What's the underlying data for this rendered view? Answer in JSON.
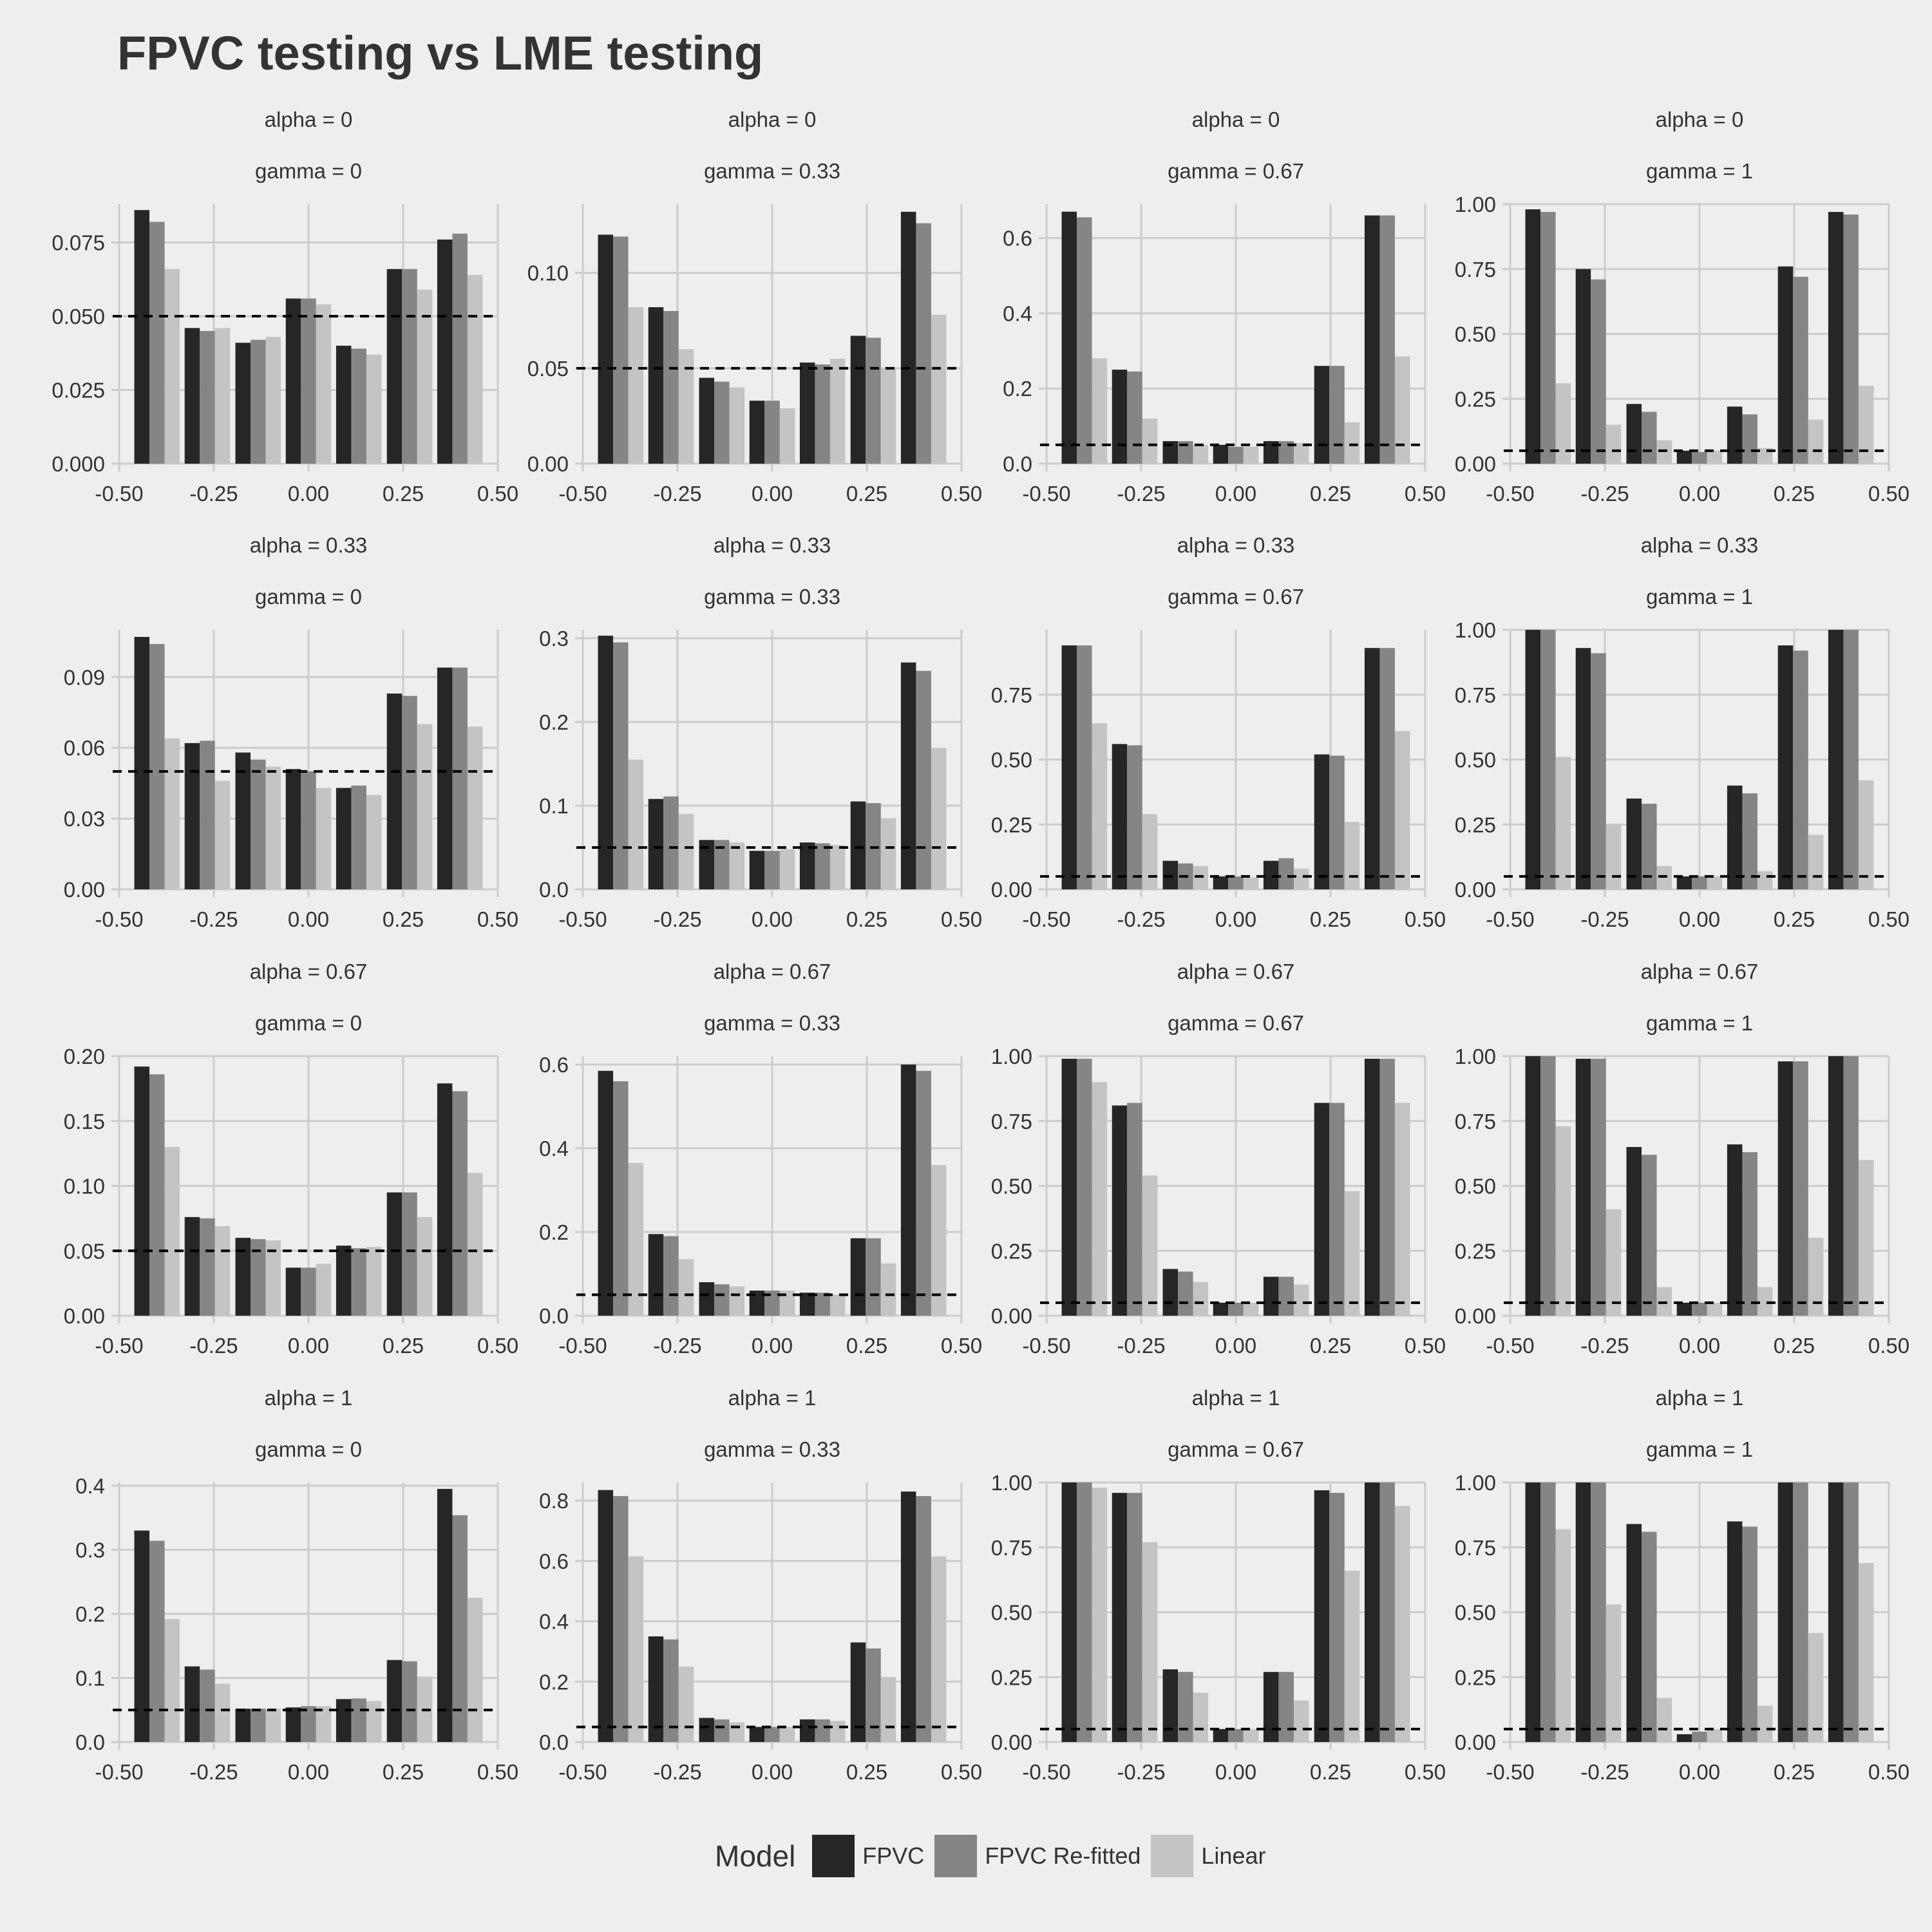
{
  "title": "FPVC testing vs LME testing",
  "legend": {
    "title": "Model",
    "items": [
      {
        "label": "FPVC",
        "color": "#262626"
      },
      {
        "label": "FPVC Re-fitted",
        "color": "#858585"
      },
      {
        "label": "Linear",
        "color": "#c4c4c4"
      }
    ]
  },
  "colors": {
    "background": "#eeeeee",
    "grid": "#cccccc",
    "text": "#333333",
    "reference_line": "#000000"
  },
  "chart_data": {
    "type": "bar",
    "layout": "facet-grid",
    "x": [
      -0.4,
      -0.267,
      -0.133,
      0.0,
      0.133,
      0.267,
      0.4
    ],
    "x_ticks": [
      "-0.50",
      "-0.25",
      "0.00",
      "0.25",
      "0.50"
    ],
    "xlim": [
      -0.5,
      0.5
    ],
    "reference_line": 0.05,
    "grid": true,
    "legend_position": "bottom",
    "series_names": [
      "FPVC",
      "FPVC Re-fitted",
      "Linear"
    ],
    "panels": [
      {
        "row_label": "alpha = 0",
        "col_label": "gamma = 0",
        "ylim": [
          0,
          0.088
        ],
        "y_ticks": [
          "0.000",
          "0.025",
          "0.050",
          "0.075"
        ],
        "values": [
          [
            0.086,
            0.046,
            0.041,
            0.056,
            0.04,
            0.066,
            0.076
          ],
          [
            0.082,
            0.045,
            0.042,
            0.056,
            0.039,
            0.066,
            0.078
          ],
          [
            0.066,
            0.046,
            0.043,
            0.054,
            0.037,
            0.059,
            0.064
          ]
        ]
      },
      {
        "row_label": "alpha = 0",
        "col_label": "gamma = 0.33",
        "ylim": [
          0,
          0.136
        ],
        "y_ticks": [
          "0.00",
          "0.05",
          "0.10"
        ],
        "values": [
          [
            0.12,
            0.082,
            0.045,
            0.033,
            0.053,
            0.067,
            0.132
          ],
          [
            0.119,
            0.08,
            0.043,
            0.033,
            0.052,
            0.066,
            0.126
          ],
          [
            0.082,
            0.06,
            0.04,
            0.029,
            0.055,
            0.05,
            0.078
          ]
        ]
      },
      {
        "row_label": "alpha = 0",
        "col_label": "gamma = 0.67",
        "ylim": [
          0,
          0.69
        ],
        "y_ticks": [
          "0.0",
          "0.2",
          "0.4",
          "0.6"
        ],
        "values": [
          [
            0.67,
            0.25,
            0.06,
            0.05,
            0.06,
            0.26,
            0.66
          ],
          [
            0.655,
            0.245,
            0.06,
            0.045,
            0.06,
            0.26,
            0.66
          ],
          [
            0.28,
            0.12,
            0.05,
            0.045,
            0.055,
            0.11,
            0.285
          ]
        ]
      },
      {
        "row_label": "alpha = 0",
        "col_label": "gamma = 1",
        "ylim": [
          0,
          1.0
        ],
        "y_ticks": [
          "0.00",
          "0.25",
          "0.50",
          "0.75",
          "1.00"
        ],
        "values": [
          [
            0.98,
            0.75,
            0.23,
            0.05,
            0.22,
            0.76,
            0.97
          ],
          [
            0.97,
            0.71,
            0.2,
            0.045,
            0.19,
            0.72,
            0.96
          ],
          [
            0.31,
            0.15,
            0.09,
            0.05,
            0.06,
            0.17,
            0.3
          ]
        ]
      },
      {
        "row_label": "alpha = 0.33",
        "col_label": "gamma = 0",
        "ylim": [
          0,
          0.11
        ],
        "y_ticks": [
          "0.00",
          "0.03",
          "0.06",
          "0.09"
        ],
        "values": [
          [
            0.107,
            0.062,
            0.058,
            0.051,
            0.043,
            0.083,
            0.094
          ],
          [
            0.104,
            0.063,
            0.055,
            0.05,
            0.044,
            0.082,
            0.094
          ],
          [
            0.064,
            0.046,
            0.052,
            0.043,
            0.04,
            0.07,
            0.069
          ]
        ]
      },
      {
        "row_label": "alpha = 0.33",
        "col_label": "gamma = 0.33",
        "ylim": [
          0,
          0.31
        ],
        "y_ticks": [
          "0.0",
          "0.1",
          "0.2",
          "0.3"
        ],
        "values": [
          [
            0.303,
            0.108,
            0.059,
            0.046,
            0.056,
            0.105,
            0.271
          ],
          [
            0.295,
            0.111,
            0.059,
            0.046,
            0.055,
            0.103,
            0.261
          ],
          [
            0.155,
            0.09,
            0.056,
            0.048,
            0.053,
            0.085,
            0.169
          ]
        ]
      },
      {
        "row_label": "alpha = 0.33",
        "col_label": "gamma = 0.67",
        "ylim": [
          0,
          1.0
        ],
        "y_ticks": [
          "0.00",
          "0.25",
          "0.50",
          "0.75"
        ],
        "values": [
          [
            0.94,
            0.56,
            0.11,
            0.05,
            0.11,
            0.52,
            0.93
          ],
          [
            0.94,
            0.555,
            0.1,
            0.05,
            0.12,
            0.515,
            0.93
          ],
          [
            0.64,
            0.29,
            0.09,
            0.045,
            0.08,
            0.26,
            0.61
          ]
        ]
      },
      {
        "row_label": "alpha = 0.33",
        "col_label": "gamma = 1",
        "ylim": [
          0,
          1.0
        ],
        "y_ticks": [
          "0.00",
          "0.25",
          "0.50",
          "0.75",
          "1.00"
        ],
        "values": [
          [
            1.0,
            0.93,
            0.35,
            0.05,
            0.4,
            0.94,
            1.0
          ],
          [
            1.0,
            0.91,
            0.33,
            0.05,
            0.37,
            0.92,
            1.0
          ],
          [
            0.51,
            0.25,
            0.09,
            0.05,
            0.07,
            0.21,
            0.42
          ]
        ]
      },
      {
        "row_label": "alpha = 0.67",
        "col_label": "gamma = 0",
        "ylim": [
          0,
          0.2
        ],
        "y_ticks": [
          "0.00",
          "0.05",
          "0.10",
          "0.15",
          "0.20"
        ],
        "values": [
          [
            0.192,
            0.076,
            0.06,
            0.037,
            0.054,
            0.095,
            0.179
          ],
          [
            0.186,
            0.075,
            0.059,
            0.037,
            0.052,
            0.095,
            0.173
          ],
          [
            0.13,
            0.069,
            0.058,
            0.04,
            0.053,
            0.076,
            0.11
          ]
        ]
      },
      {
        "row_label": "alpha = 0.67",
        "col_label": "gamma = 0.33",
        "ylim": [
          0,
          0.62
        ],
        "y_ticks": [
          "0.0",
          "0.2",
          "0.4",
          "0.6"
        ],
        "values": [
          [
            0.585,
            0.195,
            0.08,
            0.06,
            0.055,
            0.185,
            0.6
          ],
          [
            0.56,
            0.19,
            0.075,
            0.06,
            0.055,
            0.185,
            0.585
          ],
          [
            0.365,
            0.135,
            0.07,
            0.06,
            0.05,
            0.125,
            0.36
          ]
        ]
      },
      {
        "row_label": "alpha = 0.67",
        "col_label": "gamma = 0.67",
        "ylim": [
          0,
          1.0
        ],
        "y_ticks": [
          "0.00",
          "0.25",
          "0.50",
          "0.75",
          "1.00"
        ],
        "values": [
          [
            0.99,
            0.81,
            0.18,
            0.05,
            0.15,
            0.82,
            0.99
          ],
          [
            0.99,
            0.82,
            0.17,
            0.05,
            0.15,
            0.82,
            0.99
          ],
          [
            0.9,
            0.54,
            0.13,
            0.05,
            0.12,
            0.48,
            0.82
          ]
        ]
      },
      {
        "row_label": "alpha = 0.67",
        "col_label": "gamma = 1",
        "ylim": [
          0,
          1.0
        ],
        "y_ticks": [
          "0.00",
          "0.25",
          "0.50",
          "0.75",
          "1.00"
        ],
        "values": [
          [
            1.0,
            0.99,
            0.65,
            0.05,
            0.66,
            0.98,
            1.0
          ],
          [
            1.0,
            0.99,
            0.62,
            0.05,
            0.63,
            0.98,
            1.0
          ],
          [
            0.73,
            0.41,
            0.11,
            0.05,
            0.11,
            0.3,
            0.6
          ]
        ]
      },
      {
        "row_label": "alpha = 1",
        "col_label": "gamma = 0",
        "ylim": [
          0,
          0.405
        ],
        "y_ticks": [
          "0.0",
          "0.1",
          "0.2",
          "0.3",
          "0.4"
        ],
        "values": [
          [
            0.33,
            0.118,
            0.052,
            0.054,
            0.067,
            0.128,
            0.395
          ],
          [
            0.314,
            0.113,
            0.052,
            0.056,
            0.068,
            0.126,
            0.354
          ],
          [
            0.192,
            0.091,
            0.052,
            0.056,
            0.064,
            0.102,
            0.225
          ]
        ]
      },
      {
        "row_label": "alpha = 1",
        "col_label": "gamma = 0.33",
        "ylim": [
          0,
          0.86
        ],
        "y_ticks": [
          "0.0",
          "0.2",
          "0.4",
          "0.6",
          "0.8"
        ],
        "values": [
          [
            0.835,
            0.35,
            0.08,
            0.05,
            0.075,
            0.33,
            0.83
          ],
          [
            0.815,
            0.34,
            0.075,
            0.05,
            0.075,
            0.31,
            0.815
          ],
          [
            0.615,
            0.25,
            0.065,
            0.05,
            0.07,
            0.215,
            0.615
          ]
        ]
      },
      {
        "row_label": "alpha = 1",
        "col_label": "gamma = 0.67",
        "ylim": [
          0,
          1.0
        ],
        "y_ticks": [
          "0.00",
          "0.25",
          "0.50",
          "0.75",
          "1.00"
        ],
        "values": [
          [
            1.0,
            0.96,
            0.28,
            0.05,
            0.27,
            0.97,
            1.0
          ],
          [
            1.0,
            0.96,
            0.27,
            0.05,
            0.27,
            0.96,
            1.0
          ],
          [
            0.98,
            0.77,
            0.19,
            0.05,
            0.16,
            0.66,
            0.91
          ]
        ]
      },
      {
        "row_label": "alpha = 1",
        "col_label": "gamma = 1",
        "ylim": [
          0,
          1.0
        ],
        "y_ticks": [
          "0.00",
          "0.25",
          "0.50",
          "0.75",
          "1.00"
        ],
        "values": [
          [
            1.0,
            1.0,
            0.84,
            0.03,
            0.85,
            1.0,
            1.0
          ],
          [
            1.0,
            1.0,
            0.81,
            0.04,
            0.83,
            1.0,
            1.0
          ],
          [
            0.82,
            0.53,
            0.17,
            0.05,
            0.14,
            0.42,
            0.69
          ]
        ]
      }
    ]
  }
}
